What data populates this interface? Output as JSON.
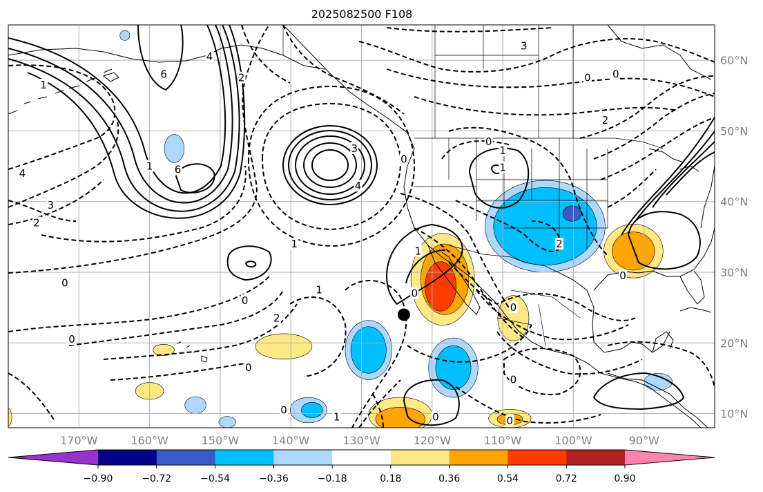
{
  "title": "2025082500 F108",
  "map": {
    "lon_min": -180,
    "lon_max": -80,
    "lat_min": 8,
    "lat_max": 65,
    "lon_ticks": [
      {
        "lon": -170,
        "label": "170°W"
      },
      {
        "lon": -160,
        "label": "160°W"
      },
      {
        "lon": -150,
        "label": "150°W"
      },
      {
        "lon": -140,
        "label": "140°W"
      },
      {
        "lon": -130,
        "label": "130°W"
      },
      {
        "lon": -120,
        "label": "120°W"
      },
      {
        "lon": -110,
        "label": "110°W"
      },
      {
        "lon": -100,
        "label": "100°W"
      },
      {
        "lon": -90,
        "label": "90°W"
      }
    ],
    "lat_ticks": [
      {
        "lat": 60,
        "label": "60°N"
      },
      {
        "lat": 50,
        "label": "50°N"
      },
      {
        "lat": 40,
        "label": "40°N"
      },
      {
        "lat": 30,
        "label": "30°N"
      },
      {
        "lat": 20,
        "label": "20°N"
      },
      {
        "lat": 10,
        "label": "10°N"
      }
    ],
    "marker": {
      "name": "location-marker",
      "lon": -124,
      "lat": 24
    },
    "colors": {
      "coast": "#000000",
      "grid": "#b0b0b0",
      "land": "#ffffff"
    }
  },
  "colorbar": {
    "tick_labels": [
      "−0.90",
      "−0.72",
      "−0.54",
      "−0.36",
      "−0.18",
      "0.18",
      "0.36",
      "0.54",
      "0.72",
      "0.90"
    ],
    "colors": [
      "#9932cc",
      "#00008b",
      "#3a5bc7",
      "#00bfff",
      "#add8ff",
      "#ffffff",
      "#ffe885",
      "#ffa500",
      "#ff3c00",
      "#b22222",
      "#ff85b0"
    ]
  },
  "shaded": [
    {
      "name": "shade-hawaii-cluster",
      "level": 0.18,
      "color": "#ffe885",
      "lon": -141,
      "lat": 19.5,
      "rx": 4,
      "ry": 1.8
    },
    {
      "name": "shade-west-of-hawaii",
      "level": 0.18,
      "color": "#ffe885",
      "lon": -158,
      "lat": 19,
      "rx": 1.5,
      "ry": 0.8
    },
    {
      "name": "shade-hawaii-south",
      "level": 0.18,
      "color": "#ffe885",
      "lon": -160,
      "lat": 13.2,
      "rx": 2,
      "ry": 1.2
    },
    {
      "name": "shade-dateline-edge",
      "level": 0.18,
      "color": "#ffe885",
      "lon": -180,
      "lat": 9.5,
      "rx": 0.5,
      "ry": 1.2
    },
    {
      "name": "shade-baja-west",
      "level": 0.18,
      "color": "#ffe885",
      "lon": -118.5,
      "lat": 29,
      "rx": 4.5,
      "ry": 6.5
    },
    {
      "name": "shade-baja-west",
      "level": 0.36,
      "color": "#ffa500",
      "lon": -118.2,
      "lat": 29,
      "rx": 3.4,
      "ry": 5
    },
    {
      "name": "shade-baja-west",
      "level": 0.54,
      "color": "#ff3c00",
      "lon": -118.8,
      "lat": 28,
      "rx": 2.2,
      "ry": 3.5
    },
    {
      "name": "shade-mexico-coast",
      "level": 0.18,
      "color": "#ffe885",
      "lon": -108.5,
      "lat": 23.5,
      "rx": 2.2,
      "ry": 3.2
    },
    {
      "name": "shade-gulf-coast",
      "level": 0.18,
      "color": "#ffe885",
      "lon": -91.5,
      "lat": 33,
      "rx": 4.2,
      "ry": 3.8
    },
    {
      "name": "shade-gulf-coast",
      "level": 0.36,
      "color": "#ffa500",
      "lon": -91.5,
      "lat": 33,
      "rx": 3,
      "ry": 2.7
    },
    {
      "name": "shade-eq-pacific",
      "level": 0.18,
      "color": "#ffe885",
      "lon": -124.5,
      "lat": 9.8,
      "rx": 4.5,
      "ry": 2.5
    },
    {
      "name": "shade-eq-pacific",
      "level": 0.36,
      "color": "#ffa500",
      "lon": -124.5,
      "lat": 9.2,
      "rx": 3.5,
      "ry": 1.7
    },
    {
      "name": "shade-eq-east",
      "level": 0.18,
      "color": "#ffe885",
      "lon": -109,
      "lat": 9.3,
      "rx": 3,
      "ry": 1.3
    },
    {
      "name": "shade-eq-east",
      "level": 0.36,
      "color": "#ffa500",
      "lon": -109,
      "lat": 9.2,
      "rx": 1.8,
      "ry": 0.8
    },
    {
      "name": "shade-us-southwest",
      "level": -0.18,
      "color": "#add8ff",
      "lon": -104,
      "lat": 36.5,
      "rx": 8.5,
      "ry": 6.5
    },
    {
      "name": "shade-us-southwest",
      "level": -0.36,
      "color": "#00bfff",
      "lon": -104,
      "lat": 36.5,
      "rx": 7.3,
      "ry": 5.5
    },
    {
      "name": "shade-us-southwest",
      "level": -0.54,
      "color": "#3a5bc7",
      "lon": -100.2,
      "lat": 38.3,
      "rx": 1.3,
      "ry": 1.1
    },
    {
      "name": "shade-pacific-southwest",
      "level": -0.18,
      "color": "#add8ff",
      "lon": -129,
      "lat": 19,
      "rx": 3.3,
      "ry": 4.2
    },
    {
      "name": "shade-pacific-southwest",
      "level": -0.36,
      "color": "#00bfff",
      "lon": -129,
      "lat": 19,
      "rx": 2.5,
      "ry": 3.3
    },
    {
      "name": "shade-pacific-south",
      "level": -0.18,
      "color": "#add8ff",
      "lon": -117,
      "lat": 16.5,
      "rx": 3.5,
      "ry": 4.2
    },
    {
      "name": "shade-pacific-south",
      "level": -0.36,
      "color": "#00bfff",
      "lon": -117,
      "lat": 16.5,
      "rx": 2.5,
      "ry": 3.1
    },
    {
      "name": "shade-pacific-near-equator",
      "level": -0.18,
      "color": "#add8ff",
      "lon": -137.5,
      "lat": 10.5,
      "rx": 2.6,
      "ry": 1.8
    },
    {
      "name": "shade-pacific-near-equator",
      "level": -0.36,
      "color": "#00bfff",
      "lon": -137,
      "lat": 10.5,
      "rx": 1.5,
      "ry": 1.1
    },
    {
      "name": "shade-small-pacific",
      "level": -0.18,
      "color": "#add8ff",
      "lon": -153.5,
      "lat": 11.2,
      "rx": 1.5,
      "ry": 1.2
    },
    {
      "name": "shade-gulf-aleutians",
      "level": -0.18,
      "color": "#add8ff",
      "lon": -156.5,
      "lat": 47.5,
      "rx": 1.4,
      "ry": 2
    },
    {
      "name": "shade-pacific-southwest-small",
      "level": -0.18,
      "color": "#add8ff",
      "lon": -149,
      "lat": 8.8,
      "rx": 1.2,
      "ry": 0.8
    },
    {
      "name": "shade-central-america",
      "level": -0.18,
      "color": "#add8ff",
      "lon": -88,
      "lat": 14.5,
      "rx": 2,
      "ry": 1.2
    },
    {
      "name": "shade-alaska-peninsula",
      "level": -0.18,
      "color": "#add8ff",
      "lon": -163.5,
      "lat": 63.5,
      "rx": 0.7,
      "ry": 0.7
    }
  ],
  "contour_labels": [
    {
      "text": "3",
      "lon": -131,
      "lat": 47.5
    },
    {
      "text": "4",
      "lon": -130.5,
      "lat": 42.2
    },
    {
      "text": "0",
      "lon": -124,
      "lat": 46
    },
    {
      "text": "6",
      "lon": -156,
      "lat": 44.5
    },
    {
      "text": "1",
      "lon": -160,
      "lat": 45
    },
    {
      "text": "1",
      "lon": -110,
      "lat": 47.2
    },
    {
      "text": "1",
      "lon": -110,
      "lat": 44.8
    },
    {
      "text": "0",
      "lon": -112,
      "lat": 48.5
    },
    {
      "text": "2",
      "lon": -102,
      "lat": 34
    },
    {
      "text": "3",
      "lon": -107,
      "lat": 62
    },
    {
      "text": "0",
      "lon": -98,
      "lat": 57.5
    },
    {
      "text": "0",
      "lon": -94,
      "lat": 58
    },
    {
      "text": "2",
      "lon": -95.5,
      "lat": 51.5
    },
    {
      "text": "3",
      "lon": -174,
      "lat": 39.5
    },
    {
      "text": "2",
      "lon": -176,
      "lat": 37
    },
    {
      "text": "4",
      "lon": -178,
      "lat": 44
    },
    {
      "text": "1",
      "lon": -175,
      "lat": 56.5
    },
    {
      "text": "1",
      "lon": -139.5,
      "lat": 34
    },
    {
      "text": "1",
      "lon": -136,
      "lat": 27.5
    },
    {
      "text": "2",
      "lon": -142,
      "lat": 23.5
    },
    {
      "text": "0",
      "lon": -146.5,
      "lat": 26
    },
    {
      "text": "0",
      "lon": -172,
      "lat": 28.5
    },
    {
      "text": "0",
      "lon": -171,
      "lat": 20.5
    },
    {
      "text": "0",
      "lon": -146,
      "lat": 16.5
    },
    {
      "text": "0",
      "lon": -141,
      "lat": 10.5
    },
    {
      "text": "1",
      "lon": -133.5,
      "lat": 9.5
    },
    {
      "text": "0",
      "lon": -119.5,
      "lat": 9.5
    },
    {
      "text": "0",
      "lon": -108.5,
      "lat": 14.8
    },
    {
      "text": "0",
      "lon": -109,
      "lat": 9
    },
    {
      "text": "0",
      "lon": -122.5,
      "lat": 27
    },
    {
      "text": "0",
      "lon": -108.5,
      "lat": 25
    },
    {
      "text": "0",
      "lon": -93,
      "lat": 29.5
    },
    {
      "text": "1",
      "lon": -122,
      "lat": 33
    },
    {
      "text": "4",
      "lon": -151.5,
      "lat": 60.5
    },
    {
      "text": "2",
      "lon": -147,
      "lat": 57.5
    },
    {
      "text": "6",
      "lon": -158,
      "lat": 58
    }
  ]
}
